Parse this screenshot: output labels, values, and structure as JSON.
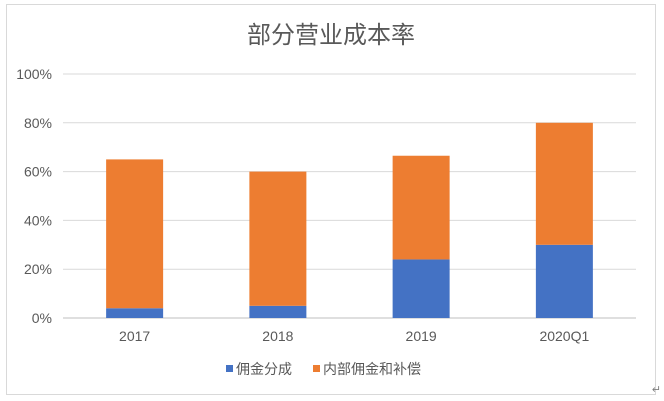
{
  "chart_data": {
    "type": "bar",
    "stacked": true,
    "title": "部分营业成本率",
    "categories": [
      "2017",
      "2018",
      "2019",
      "2020Q1"
    ],
    "series": [
      {
        "name": "佣金分成",
        "values": [
          4,
          5,
          24,
          30
        ],
        "color": "#4472c4"
      },
      {
        "name": "内部佣金和补偿",
        "values": [
          61,
          55,
          42.5,
          50
        ],
        "color": "#ed7d31"
      }
    ],
    "y_ticks": [
      "0%",
      "20%",
      "40%",
      "60%",
      "80%",
      "100%"
    ],
    "ylim": [
      0,
      100
    ],
    "grid": true,
    "legend_position": "bottom",
    "xlabel": "",
    "ylabel": ""
  },
  "corner_icon": "resize-arrow-icon",
  "corner_glyph": "↵"
}
